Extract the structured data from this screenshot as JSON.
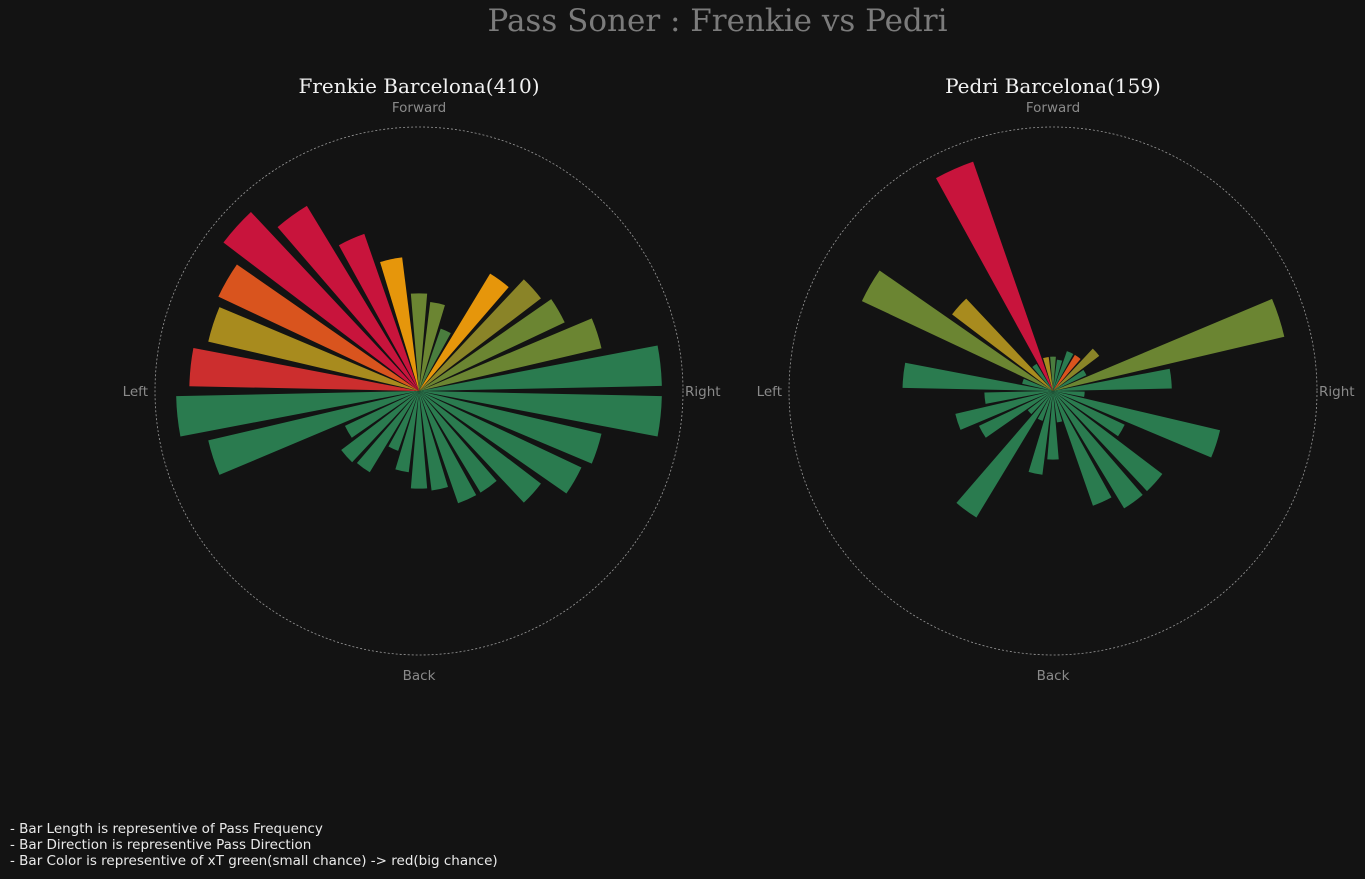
{
  "title": "Pass Soner : Frenkie vs Pedri",
  "directions": {
    "forward": "Forward",
    "right": "Right",
    "back": "Back",
    "left": "Left"
  },
  "notes": [
    "- Bar Length is representive of Pass Frequency",
    "- Bar Direction is representive Pass Direction",
    "- Bar Color is representive of xT green(small chance) -> red(big chance)"
  ],
  "colors": {
    "background": "#131313",
    "xt_scale": [
      "#2a7b4f",
      "#4a7d3e",
      "#6b8532",
      "#8a8428",
      "#a88b1e",
      "#e6960b",
      "#d9541e",
      "#cc2e2e",
      "#c8143c"
    ],
    "outline": "#9a9a9a"
  },
  "chart_data": [
    {
      "type": "polar-bar",
      "title": "Frenkie Barcelona(410)",
      "direction_unit": "degrees clockwise from Forward",
      "rmax": 1.0,
      "bars": [
        {
          "direction": 0,
          "length": 0.37,
          "xt_level": 2
        },
        {
          "direction": 12,
          "length": 0.34,
          "xt_level": 2
        },
        {
          "direction": 24,
          "length": 0.25,
          "xt_level": 1
        },
        {
          "direction": 36,
          "length": 0.52,
          "xt_level": 5
        },
        {
          "direction": 48,
          "length": 0.58,
          "xt_level": 3
        },
        {
          "direction": 60,
          "length": 0.61,
          "xt_level": 2
        },
        {
          "direction": 72,
          "length": 0.71,
          "xt_level": 2
        },
        {
          "direction": 84,
          "length": 0.92,
          "xt_level": 0
        },
        {
          "direction": 96,
          "length": 0.92,
          "xt_level": 0
        },
        {
          "direction": 108,
          "length": 0.71,
          "xt_level": 0
        },
        {
          "direction": 120,
          "length": 0.68,
          "xt_level": 0
        },
        {
          "direction": 132,
          "length": 0.58,
          "xt_level": 0
        },
        {
          "direction": 144,
          "length": 0.45,
          "xt_level": 0
        },
        {
          "direction": 156,
          "length": 0.45,
          "xt_level": 0
        },
        {
          "direction": 168,
          "length": 0.38,
          "xt_level": 0
        },
        {
          "direction": 180,
          "length": 0.37,
          "xt_level": 0
        },
        {
          "direction": 192,
          "length": 0.31,
          "xt_level": 0
        },
        {
          "direction": 204,
          "length": 0.24,
          "xt_level": 0
        },
        {
          "direction": 216,
          "length": 0.36,
          "xt_level": 0
        },
        {
          "direction": 228,
          "length": 0.37,
          "xt_level": 0
        },
        {
          "direction": 240,
          "length": 0.31,
          "xt_level": 0
        },
        {
          "direction": 252,
          "length": 0.82,
          "xt_level": 0
        },
        {
          "direction": 264,
          "length": 0.92,
          "xt_level": 0
        },
        {
          "direction": 276,
          "length": 0.87,
          "xt_level": 7
        },
        {
          "direction": 288,
          "length": 0.82,
          "xt_level": 4
        },
        {
          "direction": 300,
          "length": 0.84,
          "xt_level": 6
        },
        {
          "direction": 312,
          "length": 0.93,
          "xt_level": 8
        },
        {
          "direction": 324,
          "length": 0.82,
          "xt_level": 8
        },
        {
          "direction": 336,
          "length": 0.63,
          "xt_level": 8
        },
        {
          "direction": 348,
          "length": 0.51,
          "xt_level": 5
        }
      ]
    },
    {
      "type": "polar-bar",
      "title": "Pedri Barcelona(159)",
      "direction_unit": "degrees clockwise from Forward",
      "rmax": 1.0,
      "bars": [
        {
          "direction": 0,
          "length": 0.13,
          "xt_level": 1
        },
        {
          "direction": 12,
          "length": 0.12,
          "xt_level": 0
        },
        {
          "direction": 24,
          "length": 0.16,
          "xt_level": 0
        },
        {
          "direction": 36,
          "length": 0.16,
          "xt_level": 6
        },
        {
          "direction": 48,
          "length": 0.22,
          "xt_level": 3
        },
        {
          "direction": 60,
          "length": 0.14,
          "xt_level": 0
        },
        {
          "direction": 72,
          "length": 0.9,
          "xt_level": 2
        },
        {
          "direction": 84,
          "length": 0.45,
          "xt_level": 0
        },
        {
          "direction": 96,
          "length": 0.12,
          "xt_level": 0
        },
        {
          "direction": 108,
          "length": 0.65,
          "xt_level": 0
        },
        {
          "direction": 120,
          "length": 0.3,
          "xt_level": 0
        },
        {
          "direction": 132,
          "length": 0.52,
          "xt_level": 0
        },
        {
          "direction": 144,
          "length": 0.52,
          "xt_level": 0
        },
        {
          "direction": 156,
          "length": 0.46,
          "xt_level": 0
        },
        {
          "direction": 168,
          "length": 0.12,
          "xt_level": 0
        },
        {
          "direction": 180,
          "length": 0.26,
          "xt_level": 0
        },
        {
          "direction": 192,
          "length": 0.32,
          "xt_level": 0
        },
        {
          "direction": 204,
          "length": 0.12,
          "xt_level": 0
        },
        {
          "direction": 216,
          "length": 0.56,
          "xt_level": 0
        },
        {
          "direction": 228,
          "length": 0.12,
          "xt_level": 0
        },
        {
          "direction": 240,
          "length": 0.31,
          "xt_level": 0
        },
        {
          "direction": 252,
          "length": 0.38,
          "xt_level": 0
        },
        {
          "direction": 264,
          "length": 0.26,
          "xt_level": 0
        },
        {
          "direction": 276,
          "length": 0.57,
          "xt_level": 0
        },
        {
          "direction": 288,
          "length": 0.12,
          "xt_level": 0
        },
        {
          "direction": 300,
          "length": 0.8,
          "xt_level": 2
        },
        {
          "direction": 312,
          "length": 0.48,
          "xt_level": 4
        },
        {
          "direction": 324,
          "length": 0.12,
          "xt_level": 0
        },
        {
          "direction": 336,
          "length": 0.92,
          "xt_level": 8
        },
        {
          "direction": 348,
          "length": 0.13,
          "xt_level": 4
        }
      ]
    }
  ]
}
